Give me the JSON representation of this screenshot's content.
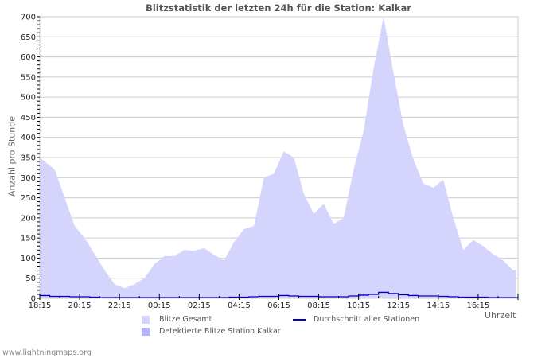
{
  "chart_data": {
    "type": "area",
    "title": "Blitzstatistik der letzten 24h für die Station: Kalkar",
    "xlabel": "Uhrzeit",
    "ylabel": "Anzahl pro Stunde",
    "ylim": [
      0,
      700
    ],
    "yticks": [
      0,
      50,
      100,
      150,
      200,
      250,
      300,
      350,
      400,
      450,
      500,
      550,
      600,
      650,
      700
    ],
    "xtick_labels": [
      "18:15",
      "20:15",
      "22:15",
      "00:15",
      "02:15",
      "04:15",
      "06:15",
      "08:15",
      "10:15",
      "12:15",
      "14:15",
      "16:15"
    ],
    "grid": true,
    "legend_position": "bottom",
    "x": [
      "18:15",
      "18:45",
      "19:15",
      "19:45",
      "20:15",
      "20:45",
      "21:15",
      "21:45",
      "22:15",
      "22:45",
      "23:15",
      "23:45",
      "00:15",
      "00:45",
      "01:15",
      "01:45",
      "02:15",
      "02:45",
      "03:15",
      "03:45",
      "04:15",
      "04:45",
      "05:15",
      "05:45",
      "06:15",
      "06:45",
      "07:15",
      "07:45",
      "08:15",
      "08:45",
      "09:15",
      "09:45",
      "10:15",
      "10:45",
      "11:15",
      "11:45",
      "12:15",
      "12:45",
      "13:15",
      "13:45",
      "14:15",
      "14:45",
      "15:15",
      "15:45",
      "16:15",
      "16:45",
      "17:15",
      "17:45"
    ],
    "series": [
      {
        "name": "Blitze Gesamt",
        "type": "area",
        "color": "#d4d4fc",
        "values": [
          350,
          320,
          250,
          180,
          150,
          110,
          70,
          35,
          25,
          35,
          50,
          85,
          105,
          105,
          120,
          118,
          125,
          108,
          95,
          140,
          172,
          180,
          300,
          310,
          365,
          350,
          260,
          210,
          235,
          185,
          200,
          320,
          415,
          570,
          700,
          560,
          430,
          345,
          285,
          275,
          295,
          200,
          120,
          145,
          130,
          110,
          95,
          70
        ]
      },
      {
        "name": "Detektierte Blitze Station Kalkar",
        "type": "area",
        "color": "#b4b4fc",
        "values": [
          0,
          0,
          0,
          0,
          0,
          0,
          0,
          0,
          0,
          0,
          0,
          0,
          0,
          0,
          0,
          0,
          0,
          0,
          0,
          0,
          0,
          0,
          0,
          0,
          0,
          0,
          0,
          0,
          0,
          0,
          0,
          0,
          0,
          0,
          0,
          0,
          0,
          0,
          0,
          0,
          0,
          0,
          0,
          0,
          0,
          0,
          0,
          0
        ]
      },
      {
        "name": "Durchschnitt aller Stationen",
        "type": "line",
        "color": "#0000cc",
        "values": [
          7,
          5,
          5,
          4,
          4,
          3,
          2,
          2,
          2,
          2,
          2,
          2,
          2,
          2,
          2,
          2,
          2,
          2,
          2,
          3,
          3,
          4,
          5,
          5,
          7,
          6,
          5,
          5,
          4,
          4,
          4,
          6,
          8,
          10,
          15,
          12,
          9,
          7,
          6,
          6,
          5,
          4,
          3,
          3,
          3,
          2,
          2,
          2
        ]
      }
    ]
  },
  "page": {
    "title": "Blitzstatistik der letzten 24h für die Station: Kalkar",
    "ylabel": "Anzahl pro Stunde",
    "xlabel": "Uhrzeit",
    "legend": {
      "total": "Blitze Gesamt",
      "detected": "Detektierte Blitze Station Kalkar",
      "average": "Durchschnitt aller Stationen"
    },
    "footer": "www.lightningmaps.org"
  }
}
